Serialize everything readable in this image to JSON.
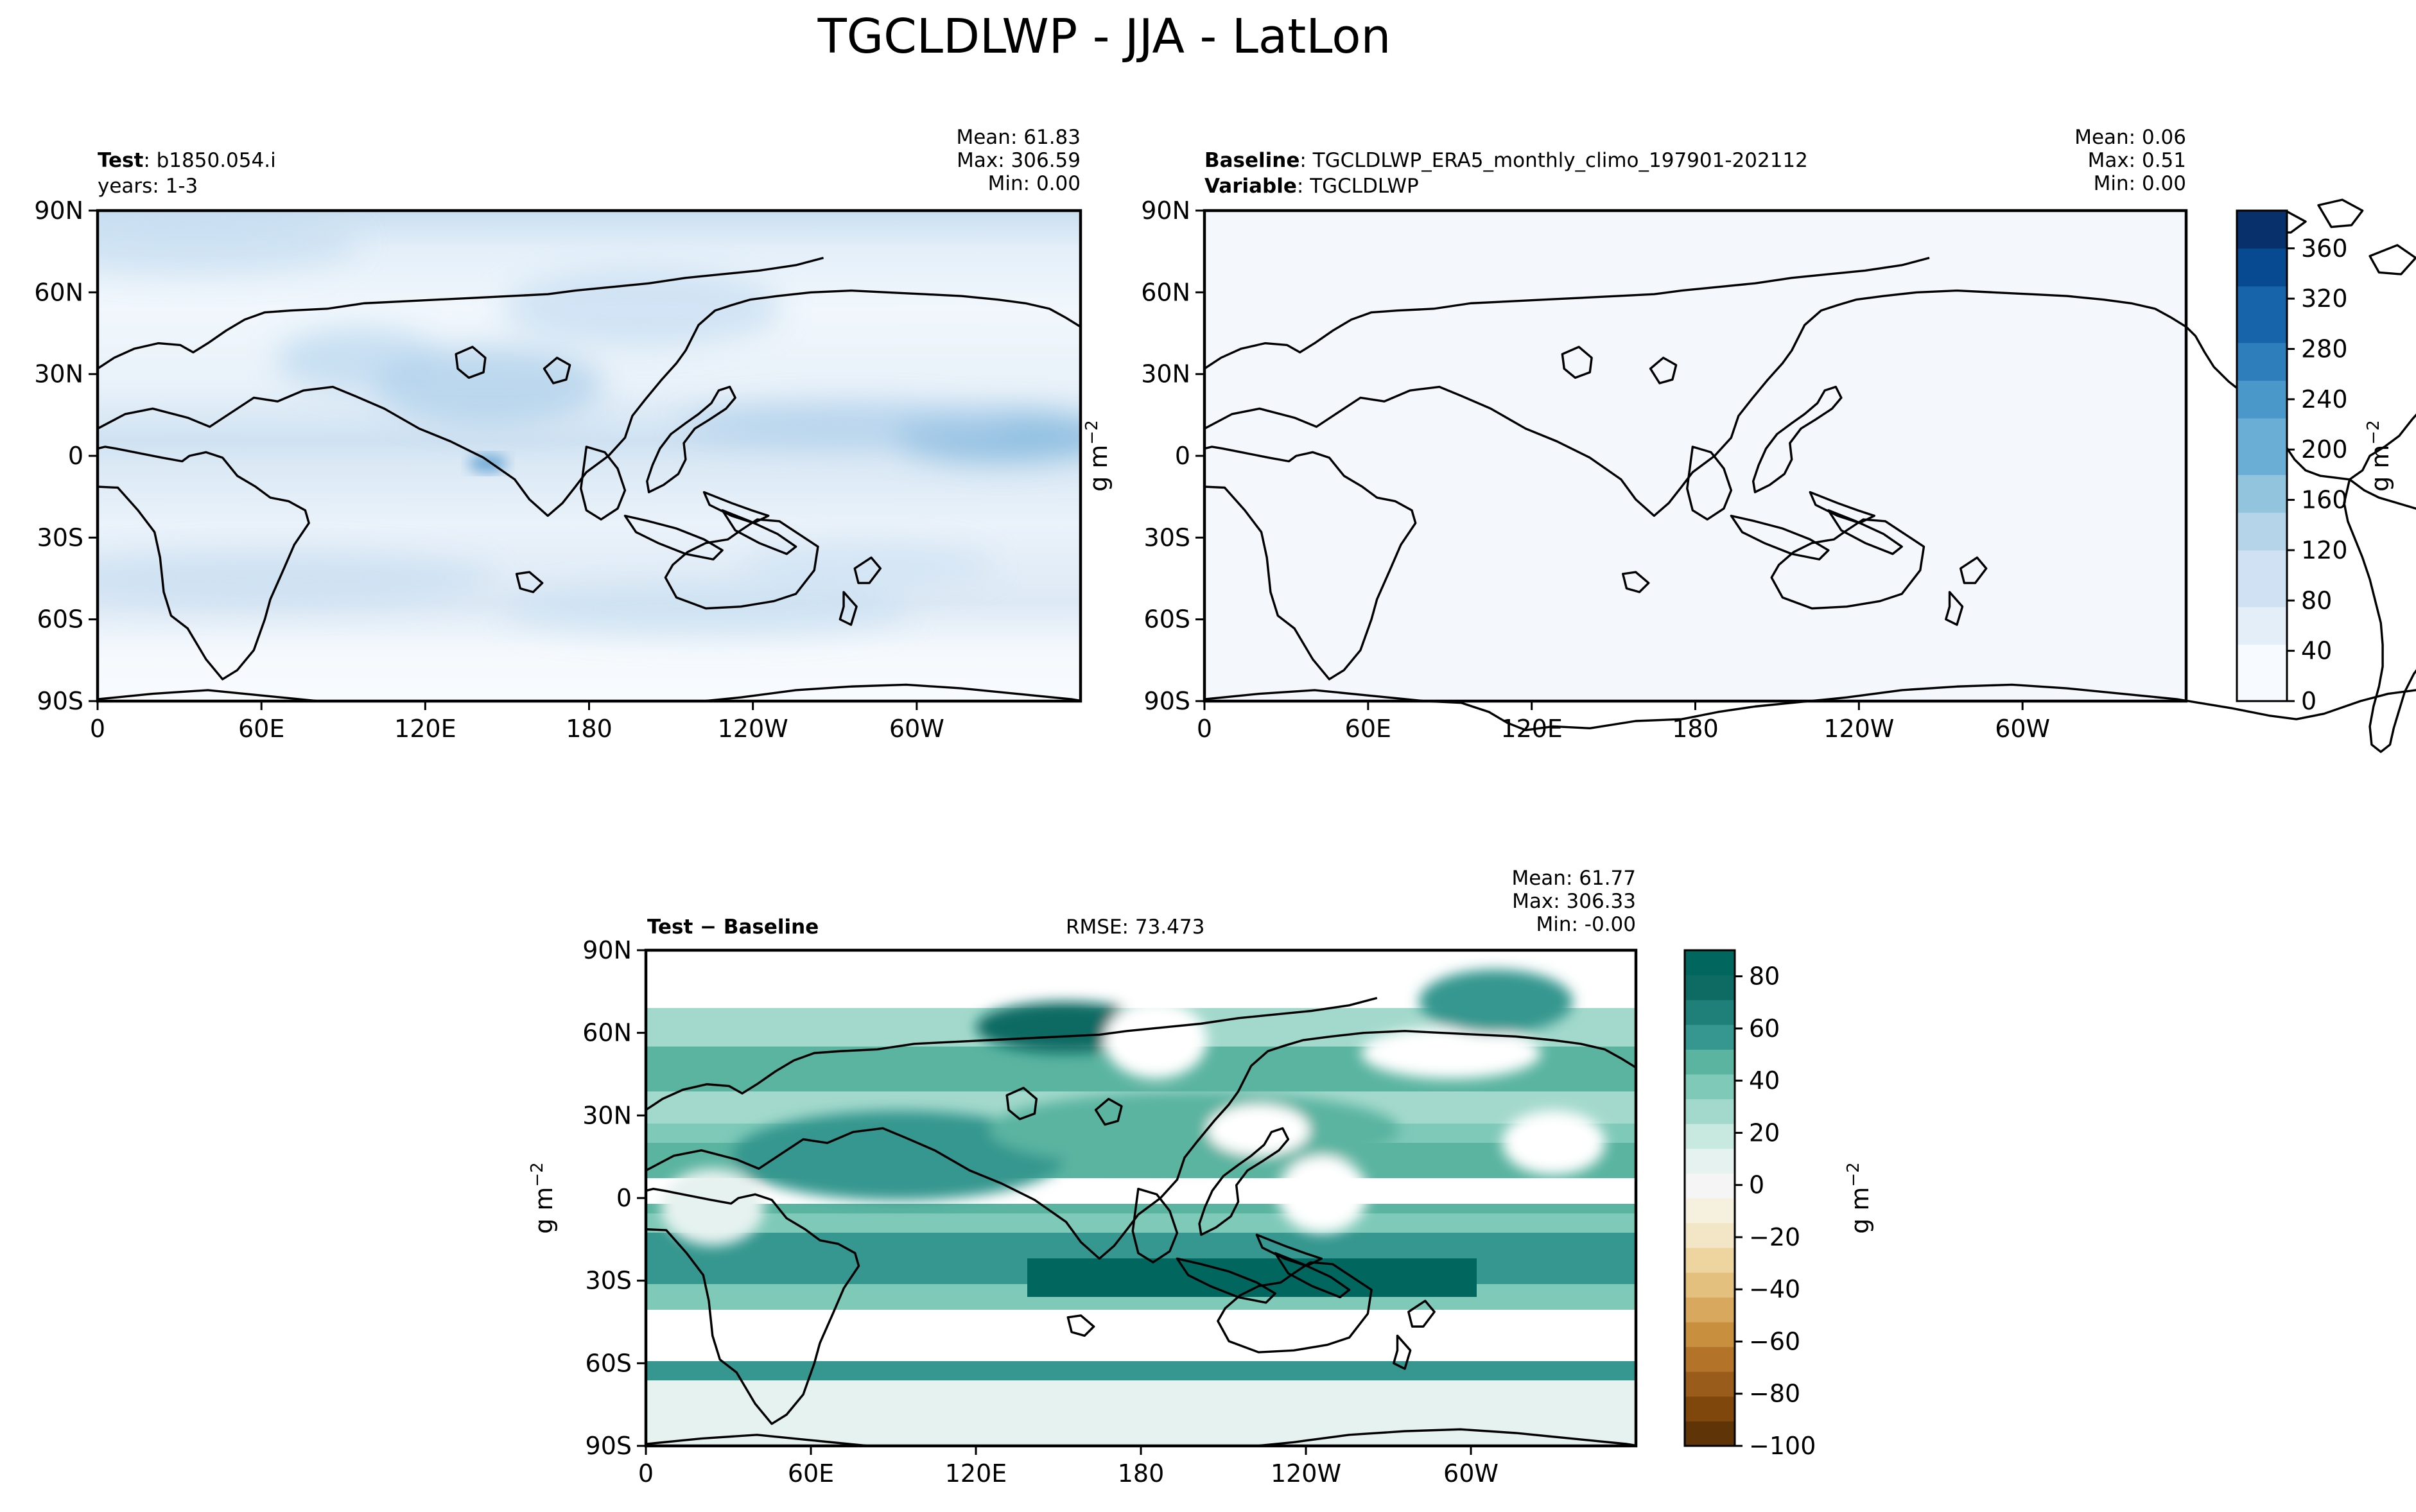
{
  "figure_title": "TGCLDLWP - JJA - LatLon",
  "colors": {
    "frame": "#000000",
    "coast": "#000000",
    "ocean_base": "#f5f9fd",
    "test_blues": [
      "#f7fbff",
      "#e3eef9",
      "#cfe1f2",
      "#b5d4e9",
      "#93c4de",
      "#6aaed6",
      "#4a98c9",
      "#2e7ebc",
      "#1764ab",
      "#084a91",
      "#08306b"
    ],
    "diff_pos": [
      "#e6f2ef",
      "#c7e9e0",
      "#a3d9cc",
      "#7ec9b8",
      "#5ab4a0",
      "#35978f",
      "#1f8079",
      "#0d6b63",
      "#01665e",
      "#00473f"
    ],
    "diff_neg": [
      "#f6f0df",
      "#f3e6c6",
      "#eed5a0",
      "#e4c07f",
      "#d8a85e",
      "#c88f3f",
      "#b3742a",
      "#9a5c1a",
      "#80470d",
      "#5f3406"
    ]
  },
  "chart_data": [
    {
      "type": "heatmap",
      "id": "test",
      "field": "TGCLDLWP",
      "label_bold": "Test",
      "label_rest": ": b1850.054.i",
      "subtitle": "years: 1-3",
      "stats": {
        "mean_text": "Mean: 61.83",
        "max_text": "Max: 306.59",
        "min_text": "Min:  0.00",
        "mean": 61.83,
        "max": 306.59,
        "min": 0.0
      },
      "xticks": [
        "0",
        "60E",
        "120E",
        "180",
        "120W",
        "60W"
      ],
      "yticks": [
        "90N",
        "60N",
        "30N",
        "0",
        "30S",
        "60S",
        "90S"
      ],
      "lon_range": [
        0,
        360
      ],
      "lat_range": [
        -90,
        90
      ],
      "colorbar": {
        "shared_with": "baseline"
      }
    },
    {
      "type": "heatmap",
      "id": "baseline",
      "field": "TGCLDLWP",
      "label_bold": "Baseline",
      "label_rest": ": TGCLDLWP_ERA5_monthly_climo_197901-202112",
      "label2_bold": "Variable",
      "label2_rest": ": TGCLDLWP",
      "stats": {
        "mean_text": "Mean:  0.06",
        "max_text": "Max:  0.51",
        "min_text": "Min:  0.00",
        "mean": 0.06,
        "max": 0.51,
        "min": 0.0
      },
      "xticks": [
        "0",
        "60E",
        "120E",
        "180",
        "120W",
        "60W"
      ],
      "yticks": [
        "90N",
        "60N",
        "30N",
        "0",
        "30S",
        "60S",
        "90S"
      ],
      "lon_range": [
        0,
        360
      ],
      "lat_range": [
        -90,
        90
      ],
      "ylabel": "g m",
      "ylabel_sup": "−2",
      "colorbar": {
        "label": "g m",
        "label_sup": "−2",
        "range": [
          0,
          390
        ],
        "ticks": [
          "0",
          "40",
          "80",
          "120",
          "160",
          "200",
          "240",
          "280",
          "320",
          "360"
        ],
        "tick_values": [
          0,
          40,
          80,
          120,
          160,
          200,
          240,
          280,
          320,
          360
        ]
      }
    },
    {
      "type": "heatmap",
      "id": "difference",
      "field": "TGCLDLWP",
      "label_bold": "Test − Baseline",
      "rmse_text": "RMSE: 73.473",
      "rmse": 73.473,
      "stats": {
        "mean_text": "Mean: 61.77",
        "max_text": "Max: 306.33",
        "min_text": "Min: -0.00",
        "mean": 61.77,
        "max": 306.33,
        "min": -0.0
      },
      "xticks": [
        "0",
        "60E",
        "120E",
        "180",
        "120W",
        "60W"
      ],
      "yticks": [
        "90N",
        "60N",
        "30N",
        "0",
        "30S",
        "60S",
        "90S"
      ],
      "lon_range": [
        0,
        360
      ],
      "lat_range": [
        -90,
        90
      ],
      "ylabel": "g m",
      "ylabel_sup": "−2",
      "colorbar": {
        "label": "g m",
        "label_sup": "−2",
        "range": [
          -100,
          90
        ],
        "ticks": [
          "80",
          "60",
          "40",
          "20",
          "0",
          "−20",
          "−40",
          "−60",
          "−80",
          "−100"
        ],
        "tick_values": [
          80,
          60,
          40,
          20,
          0,
          -20,
          -40,
          -60,
          -80,
          -100
        ]
      }
    }
  ]
}
